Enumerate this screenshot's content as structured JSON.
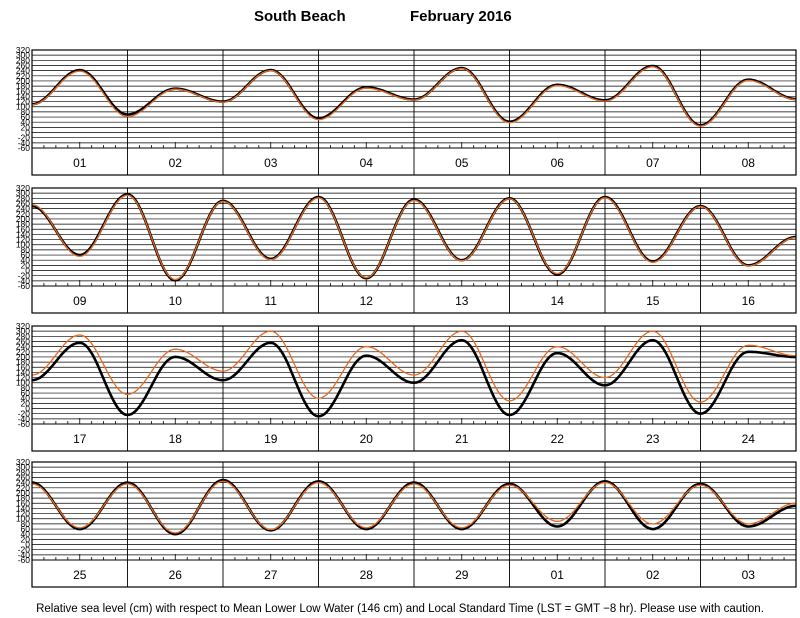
{
  "chart_data": {
    "type": "line",
    "title_location": "South Beach",
    "title_period": "February   2016",
    "caption": "Relative sea level (cm) with respect to Mean Lower Low Water (146 cm) and Local Standard Time (LST = GMT −8 hr). Please use with caution.",
    "y_unit": "cm",
    "ylim": [
      -60,
      320
    ],
    "yticks": [
      -60,
      -40,
      -20,
      0,
      20,
      40,
      60,
      80,
      100,
      120,
      140,
      160,
      180,
      200,
      220,
      240,
      260,
      280,
      300,
      320
    ],
    "grid": true,
    "x_unit": "hours from 00:00 LST of the first day in each panel",
    "colors": {
      "observed": "#000000",
      "predicted": "#e8681e",
      "frame": "#000000"
    },
    "panels": [
      {
        "days": [
          "01",
          "02",
          "03",
          "04",
          "05",
          "06",
          "07",
          "08"
        ],
        "series": [
          {
            "x": [
              0,
              12,
              24,
              36,
              48,
              60,
              72,
              84,
              96,
              108,
              120,
              132,
              144,
              156,
              168,
              180,
              192
            ],
            "y": [
              110,
              242,
              70,
              170,
              120,
              242,
              55,
              175,
              128,
              250,
              42,
              185,
              125,
              258,
              28,
              205,
              130
            ]
          },
          {
            "x": [
              0,
              12,
              24,
              36,
              48,
              60,
              72,
              84,
              96,
              108,
              120,
              132,
              144,
              156,
              168,
              180,
              192
            ],
            "y": [
              108,
              238,
              62,
              168,
              118,
              240,
              50,
              172,
              126,
              248,
              38,
              182,
              122,
              255,
              25,
              202,
              128
            ]
          }
        ]
      },
      {
        "days": [
          "09",
          "10",
          "11",
          "12",
          "13",
          "14",
          "15",
          "16"
        ],
        "series": [
          {
            "x": [
              0,
              12,
              24,
              36,
              48,
              60,
              72,
              84,
              96,
              108,
              120,
              132,
              144,
              156,
              168,
              180,
              192
            ],
            "y": [
              250,
              60,
              295,
              -38,
              270,
              45,
              285,
              -30,
              275,
              40,
              280,
              -15,
              285,
              35,
              250,
              20,
              130
            ]
          },
          {
            "x": [
              0,
              12,
              24,
              36,
              48,
              60,
              72,
              84,
              96,
              108,
              120,
              132,
              144,
              156,
              168,
              180,
              192
            ],
            "y": [
              255,
              55,
              292,
              -35,
              268,
              42,
              282,
              -28,
              272,
              38,
              278,
              -12,
              282,
              32,
              248,
              18,
              128
            ]
          }
        ]
      },
      {
        "days": [
          "17",
          "18",
          "19",
          "20",
          "21",
          "22",
          "23",
          "24"
        ],
        "series": [
          {
            "x": [
              0,
              12,
              24,
              36,
              48,
              60,
              72,
              84,
              96,
              108,
              120,
              132,
              144,
              156,
              168,
              180,
              192
            ],
            "y": [
              110,
              255,
              -25,
              200,
              110,
              255,
              -30,
              205,
              100,
              265,
              -25,
              215,
              90,
              265,
              -20,
              220,
              200
            ]
          },
          {
            "x": [
              0,
              12,
              24,
              36,
              48,
              60,
              72,
              84,
              96,
              108,
              120,
              132,
              144,
              156,
              168,
              180,
              192
            ],
            "y": [
              130,
              285,
              55,
              230,
              145,
              300,
              40,
              240,
              130,
              300,
              30,
              240,
              120,
              300,
              25,
              245,
              205
            ]
          }
        ]
      },
      {
        "days": [
          "25",
          "26",
          "27",
          "28",
          "29",
          "01",
          "02",
          "03"
        ],
        "series": [
          {
            "x": [
              0,
              12,
              24,
              36,
              48,
              60,
              72,
              84,
              96,
              108,
              120,
              132,
              144,
              156,
              168,
              180,
              192
            ],
            "y": [
              240,
              60,
              240,
              40,
              250,
              55,
              245,
              60,
              240,
              60,
              235,
              70,
              245,
              60,
              235,
              70,
              150
            ]
          },
          {
            "x": [
              0,
              12,
              24,
              36,
              48,
              60,
              72,
              84,
              96,
              108,
              120,
              132,
              144,
              156,
              168,
              180,
              192
            ],
            "y": [
              235,
              65,
              235,
              45,
              245,
              58,
              240,
              65,
              235,
              65,
              230,
              90,
              240,
              80,
              230,
              80,
              160
            ]
          }
        ]
      }
    ]
  }
}
